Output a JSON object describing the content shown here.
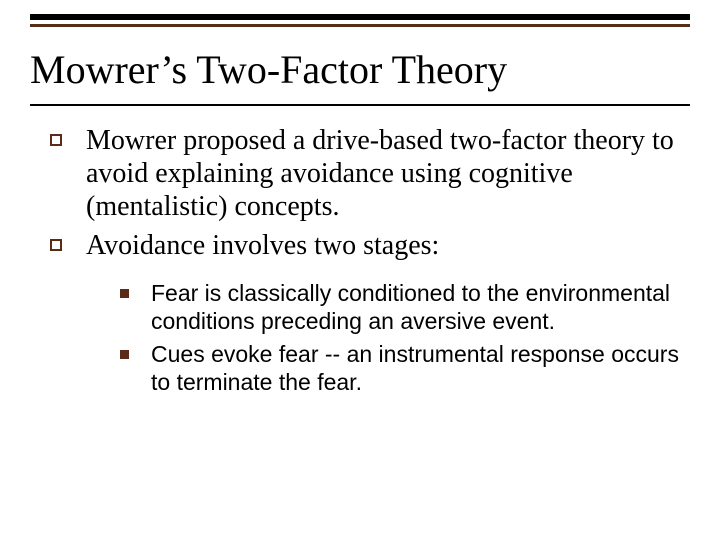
{
  "colors": {
    "top_bar": "#000000",
    "accent_bar": "#5a2c18",
    "underline": "#000000",
    "bullet_outline": "#5a2c18",
    "bullet_fill": "#5a2c18",
    "background": "#ffffff",
    "text": "#000000"
  },
  "typography": {
    "title_family": "Times New Roman",
    "title_size_pt": 40,
    "body_family": "Times New Roman",
    "body_size_pt": 28,
    "sub_family": "Arial",
    "sub_size_pt": 23
  },
  "title": "Mowrer’s Two-Factor Theory",
  "points": [
    {
      "text": "Mowrer proposed a drive-based two-factor theory to avoid explaining avoidance using cognitive (mentalistic) concepts."
    },
    {
      "text": "Avoidance involves two stages:"
    }
  ],
  "subpoints": [
    {
      "text": "Fear is classically conditioned to the environmental conditions preceding an aversive event."
    },
    {
      "text": "Cues evoke fear -- an instrumental response occurs to terminate the fear."
    }
  ]
}
